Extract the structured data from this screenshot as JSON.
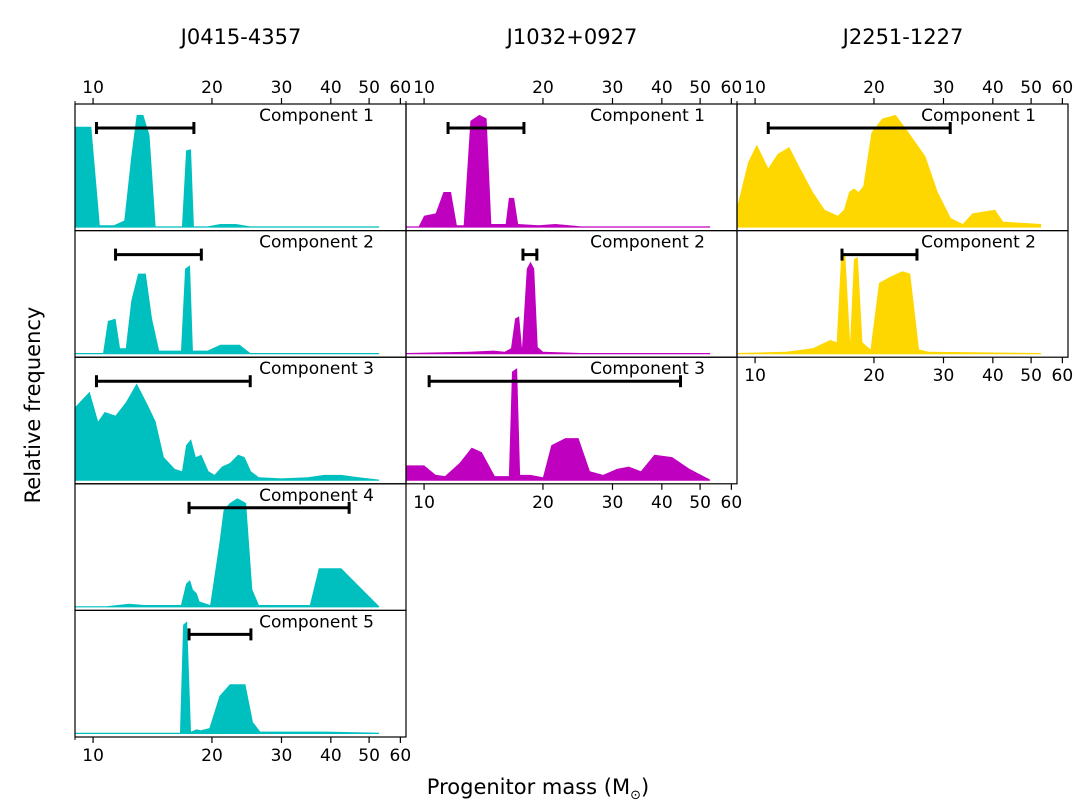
{
  "chart_data": {
    "type": "area",
    "ylabel": "Relative frequency",
    "xlabel_main": "Progenitor mass (M",
    "xlabel_sub": "⊙",
    "xlabel_close": ")",
    "xscale": "log",
    "xlim": [
      9,
      62
    ],
    "xticks": [
      10,
      20,
      30,
      40,
      50,
      60
    ],
    "xtick_labels": [
      "10",
      "20",
      "30",
      "40",
      "50",
      "60"
    ],
    "grid": false,
    "columns": [
      {
        "title": "J0415-4357",
        "color": "#00bfbf",
        "panels": [
          {
            "label": "Component 1",
            "range": [
              10.2,
              18.0
            ],
            "density": [
              [
                9.0,
                0.85
              ],
              [
                9.9,
                0.85
              ],
              [
                10.4,
                0.02
              ],
              [
                11.3,
                0.02
              ],
              [
                12.0,
                0.06
              ],
              [
                12.5,
                0.6
              ],
              [
                12.9,
                0.95
              ],
              [
                13.4,
                0.95
              ],
              [
                13.9,
                0.78
              ],
              [
                14.4,
                0.01
              ],
              [
                16.8,
                0.01
              ],
              [
                17.2,
                0.65
              ],
              [
                17.7,
                0.66
              ],
              [
                18.0,
                0.01
              ],
              [
                19.5,
                0.01
              ],
              [
                21.0,
                0.03
              ],
              [
                23.0,
                0.03
              ],
              [
                25.0,
                0.01
              ],
              [
                53.0,
                0.01
              ]
            ]
          },
          {
            "label": "Component 2",
            "range": [
              11.4,
              18.8
            ],
            "density": [
              [
                9.0,
                0.01
              ],
              [
                10.6,
                0.01
              ],
              [
                10.9,
                0.28
              ],
              [
                11.4,
                0.3
              ],
              [
                11.7,
                0.05
              ],
              [
                12.1,
                0.05
              ],
              [
                12.5,
                0.45
              ],
              [
                13.0,
                0.68
              ],
              [
                13.6,
                0.68
              ],
              [
                14.1,
                0.3
              ],
              [
                14.7,
                0.03
              ],
              [
                16.7,
                0.03
              ],
              [
                17.1,
                0.72
              ],
              [
                17.6,
                0.75
              ],
              [
                17.9,
                0.03
              ],
              [
                19.5,
                0.03
              ],
              [
                21.0,
                0.08
              ],
              [
                22.0,
                0.08
              ],
              [
                23.5,
                0.08
              ],
              [
                25.0,
                0.01
              ],
              [
                53.0,
                0.01
              ]
            ]
          },
          {
            "label": "Component 3",
            "range": [
              10.2,
              25.0
            ],
            "density": [
              [
                9.0,
                0.62
              ],
              [
                9.8,
                0.75
              ],
              [
                10.3,
                0.5
              ],
              [
                10.7,
                0.58
              ],
              [
                11.4,
                0.55
              ],
              [
                12.1,
                0.66
              ],
              [
                12.9,
                0.82
              ],
              [
                13.7,
                0.65
              ],
              [
                14.4,
                0.5
              ],
              [
                15.1,
                0.2
              ],
              [
                16.1,
                0.1
              ],
              [
                16.8,
                0.08
              ],
              [
                17.2,
                0.3
              ],
              [
                17.7,
                0.35
              ],
              [
                18.2,
                0.2
              ],
              [
                18.8,
                0.22
              ],
              [
                19.6,
                0.08
              ],
              [
                20.3,
                0.05
              ],
              [
                21.2,
                0.12
              ],
              [
                22.2,
                0.15
              ],
              [
                23.3,
                0.22
              ],
              [
                24.2,
                0.2
              ],
              [
                25.1,
                0.08
              ],
              [
                26.3,
                0.03
              ],
              [
                30.0,
                0.02
              ],
              [
                35.0,
                0.03
              ],
              [
                38.5,
                0.05
              ],
              [
                42.5,
                0.05
              ],
              [
                47.0,
                0.03
              ],
              [
                53.0,
                0.01
              ]
            ]
          },
          {
            "label": "Component 4",
            "range": [
              17.5,
              44.5
            ],
            "density": [
              [
                9.0,
                0.01
              ],
              [
                10.8,
                0.01
              ],
              [
                12.3,
                0.03
              ],
              [
                13.5,
                0.02
              ],
              [
                16.7,
                0.02
              ],
              [
                17.2,
                0.2
              ],
              [
                17.6,
                0.23
              ],
              [
                17.9,
                0.15
              ],
              [
                18.3,
                0.12
              ],
              [
                18.6,
                0.05
              ],
              [
                19.8,
                0.02
              ],
              [
                20.9,
                0.55
              ],
              [
                21.4,
                0.82
              ],
              [
                22.2,
                0.88
              ],
              [
                23.2,
                0.92
              ],
              [
                24.4,
                0.88
              ],
              [
                25.3,
                0.15
              ],
              [
                26.3,
                0.02
              ],
              [
                35.4,
                0.02
              ],
              [
                37.3,
                0.33
              ],
              [
                42.5,
                0.33
              ],
              [
                53.0,
                0.01
              ]
            ]
          },
          {
            "label": "Component 5",
            "range": [
              17.5,
              25.1
            ],
            "density": [
              [
                9.0,
                0.01
              ],
              [
                16.6,
                0.01
              ],
              [
                16.9,
                0.92
              ],
              [
                17.3,
                0.95
              ],
              [
                17.7,
                0.02
              ],
              [
                18.3,
                0.04
              ],
              [
                18.7,
                0.03
              ],
              [
                19.7,
                0.05
              ],
              [
                20.9,
                0.32
              ],
              [
                22.2,
                0.42
              ],
              [
                24.3,
                0.42
              ],
              [
                25.4,
                0.1
              ],
              [
                26.5,
                0.02
              ],
              [
                39.0,
                0.02
              ],
              [
                53.0,
                0.01
              ]
            ]
          }
        ]
      },
      {
        "title": "J1032+0927",
        "color": "#bf00bf",
        "panels": [
          {
            "label": "Component 1",
            "range": [
              11.5,
              17.9
            ],
            "density": [
              [
                9.0,
                0.01
              ],
              [
                9.7,
                0.01
              ],
              [
                10.0,
                0.1
              ],
              [
                10.7,
                0.12
              ],
              [
                11.2,
                0.3
              ],
              [
                11.7,
                0.3
              ],
              [
                12.1,
                0.02
              ],
              [
                12.6,
                0.02
              ],
              [
                13.1,
                0.9
              ],
              [
                13.8,
                0.95
              ],
              [
                14.4,
                0.92
              ],
              [
                14.8,
                0.03
              ],
              [
                16.1,
                0.03
              ],
              [
                16.4,
                0.25
              ],
              [
                16.9,
                0.25
              ],
              [
                17.3,
                0.03
              ],
              [
                19.5,
                0.02
              ],
              [
                21.5,
                0.03
              ],
              [
                25.0,
                0.01
              ],
              [
                53.0,
                0.01
              ]
            ]
          },
          {
            "label": "Component 2",
            "range": [
              17.8,
              19.3
            ],
            "density": [
              [
                9.0,
                0.01
              ],
              [
                13.0,
                0.02
              ],
              [
                15.0,
                0.03
              ],
              [
                16.0,
                0.02
              ],
              [
                16.6,
                0.05
              ],
              [
                17.0,
                0.3
              ],
              [
                17.4,
                0.32
              ],
              [
                17.7,
                0.05
              ],
              [
                18.2,
                0.72
              ],
              [
                18.6,
                0.78
              ],
              [
                19.0,
                0.72
              ],
              [
                19.4,
                0.06
              ],
              [
                20.0,
                0.02
              ],
              [
                25.0,
                0.01
              ],
              [
                53.0,
                0.01
              ]
            ]
          },
          {
            "label": "Component 3",
            "range": [
              10.3,
              44.6
            ],
            "density": [
              [
                9.0,
                0.13
              ],
              [
                10.0,
                0.13
              ],
              [
                10.7,
                0.05
              ],
              [
                11.3,
                0.04
              ],
              [
                12.3,
                0.15
              ],
              [
                13.2,
                0.28
              ],
              [
                14.0,
                0.24
              ],
              [
                15.1,
                0.04
              ],
              [
                16.4,
                0.04
              ],
              [
                16.7,
                0.92
              ],
              [
                17.2,
                0.95
              ],
              [
                17.5,
                0.05
              ],
              [
                18.6,
                0.05
              ],
              [
                20.0,
                0.03
              ],
              [
                21.0,
                0.3
              ],
              [
                22.8,
                0.36
              ],
              [
                24.6,
                0.36
              ],
              [
                26.3,
                0.08
              ],
              [
                28.4,
                0.05
              ],
              [
                30.8,
                0.1
              ],
              [
                33.0,
                0.12
              ],
              [
                35.4,
                0.08
              ],
              [
                38.3,
                0.22
              ],
              [
                42.5,
                0.2
              ],
              [
                47.0,
                0.1
              ],
              [
                53.0,
                0.01
              ]
            ]
          }
        ]
      },
      {
        "title": "J2251-1227",
        "color": "#ffd700",
        "panels": [
          {
            "label": "Component 1",
            "range": [
              10.8,
              31.2
            ],
            "density": [
              [
                9.0,
                0.17
              ],
              [
                9.6,
                0.55
              ],
              [
                10.1,
                0.7
              ],
              [
                10.8,
                0.5
              ],
              [
                11.4,
                0.62
              ],
              [
                12.2,
                0.68
              ],
              [
                13.0,
                0.5
              ],
              [
                14.0,
                0.3
              ],
              [
                15.0,
                0.15
              ],
              [
                16.2,
                0.1
              ],
              [
                16.8,
                0.15
              ],
              [
                17.3,
                0.3
              ],
              [
                17.8,
                0.33
              ],
              [
                18.3,
                0.3
              ],
              [
                18.8,
                0.35
              ],
              [
                19.7,
                0.8
              ],
              [
                21.0,
                0.92
              ],
              [
                22.7,
                0.95
              ],
              [
                24.5,
                0.8
              ],
              [
                27.0,
                0.6
              ],
              [
                29.0,
                0.3
              ],
              [
                31.3,
                0.08
              ],
              [
                33.6,
                0.03
              ],
              [
                35.5,
                0.12
              ],
              [
                40.5,
                0.15
              ],
              [
                42.5,
                0.05
              ],
              [
                53.0,
                0.03
              ]
            ]
          },
          {
            "label": "Component 2",
            "range": [
              16.6,
              25.7
            ],
            "density": [
              [
                9.0,
                0.01
              ],
              [
                12.0,
                0.02
              ],
              [
                14.0,
                0.05
              ],
              [
                15.5,
                0.12
              ],
              [
                16.1,
                0.1
              ],
              [
                16.5,
                0.8
              ],
              [
                16.9,
                0.86
              ],
              [
                17.4,
                0.1
              ],
              [
                17.8,
                0.8
              ],
              [
                18.2,
                0.82
              ],
              [
                18.7,
                0.1
              ],
              [
                19.6,
                0.04
              ],
              [
                20.6,
                0.6
              ],
              [
                21.9,
                0.65
              ],
              [
                23.6,
                0.7
              ],
              [
                24.7,
                0.68
              ],
              [
                26.0,
                0.04
              ],
              [
                27.5,
                0.02
              ],
              [
                53.0,
                0.01
              ]
            ]
          }
        ]
      }
    ]
  }
}
